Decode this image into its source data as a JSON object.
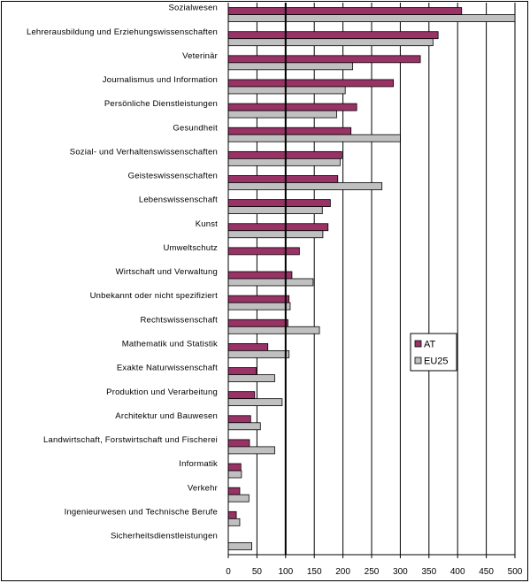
{
  "chart_data": {
    "type": "bar",
    "orientation": "horizontal",
    "categories": [
      "Sozialwesen",
      "Lehrerausbildung und Erziehungswissenschaften",
      "Veterinär",
      "Journalismus und Information",
      "Persönliche Dienstleistungen",
      "Gesundheit",
      "Sozial- und Verhaltenswissenschaften",
      "Geisteswissenschaften",
      "Lebenswissenschaft",
      "Kunst",
      "Umweltschutz",
      "Wirtschaft und Verwaltung",
      "Unbekannt oder nicht spezifiziert",
      "Rechtswissenschaft",
      "Mathematik und Statistik",
      "Exakte Naturwissenschaft",
      "Produktion und Verarbeitung",
      "Architektur und Bauwesen",
      "Landwirtschaft, Forstwirtschaft und Fischerei",
      "Informatik",
      "Verkehr",
      "Ingenieurwesen und Technische Berufe",
      "Sicherheitsdienstleistungen"
    ],
    "series": [
      {
        "name": "AT",
        "color": "#993366",
        "values": [
          407,
          366,
          335,
          288,
          224,
          214,
          198,
          191,
          178,
          174,
          124,
          111,
          106,
          104,
          69,
          49,
          46,
          39,
          37,
          22,
          20,
          14,
          0
        ]
      },
      {
        "name": "EU25",
        "color": "#c0c0c0",
        "values": [
          500,
          357,
          217,
          204,
          189,
          300,
          195,
          268,
          164,
          165,
          0,
          148,
          108,
          159,
          106,
          81,
          94,
          56,
          81,
          23,
          36,
          20,
          41
        ]
      }
    ],
    "xlim": [
      0,
      500
    ],
    "xticks": [
      0,
      50,
      100,
      150,
      200,
      250,
      300,
      350,
      400,
      450,
      500
    ],
    "reference_line_x": 100,
    "grid": "vertical",
    "legend": "right"
  }
}
